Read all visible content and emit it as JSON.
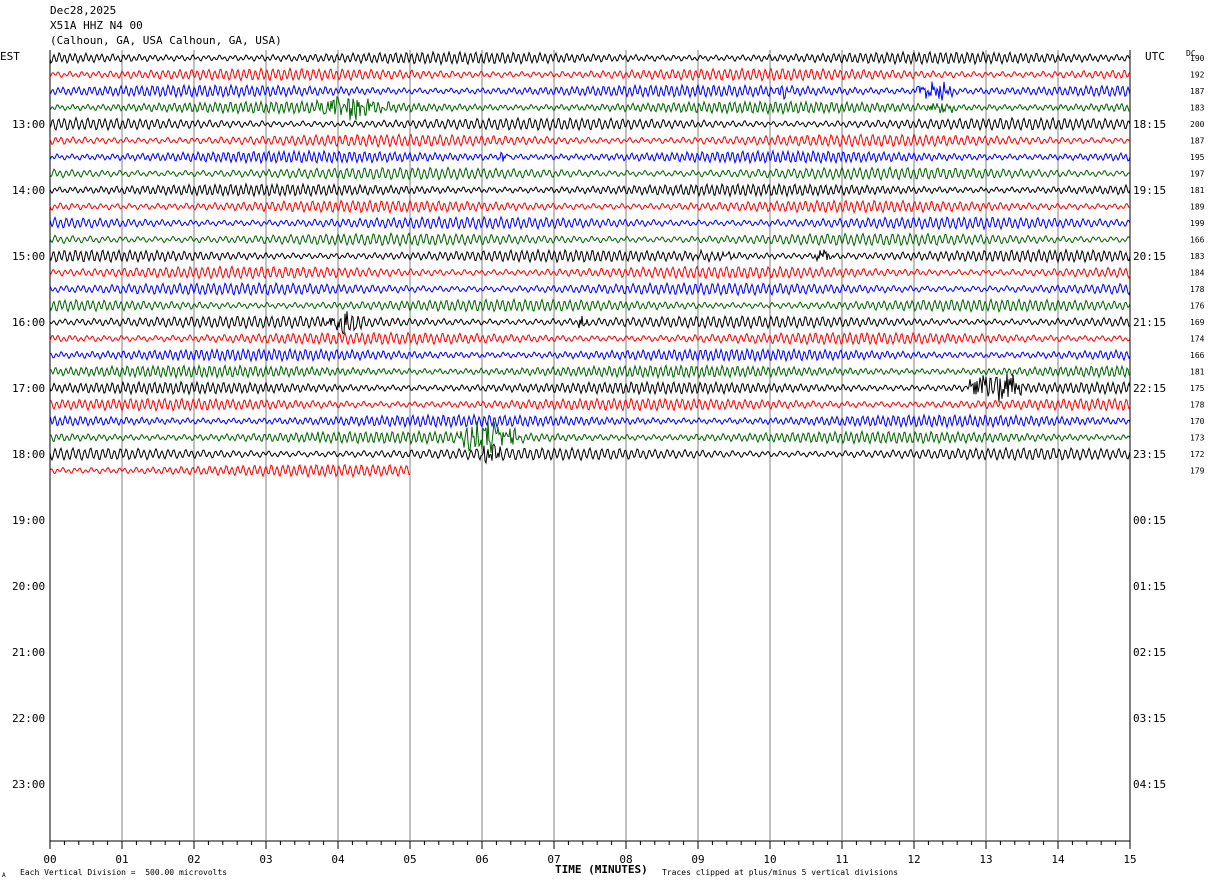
{
  "header": {
    "date": "Dec28,2025",
    "station": "X51A HHZ N4 00",
    "location": "(Calhoun, GA, USA Calhoun, GA, USA)"
  },
  "labels": {
    "left_tz": "EST",
    "right_tz": "UTC",
    "dc": "DC",
    "xlabel": "TIME (MINUTES)",
    "footer_left": "Each Vertical Division =  500.00 microvolts",
    "footer_right": "Traces clipped at plus/minus 5 vertical divisions",
    "corner_mark": "A"
  },
  "colors": {
    "black": "#000000",
    "red": "#ff0000",
    "blue": "#0000ff",
    "green": "#006400",
    "grid": "#808080"
  },
  "chart_data": {
    "type": "line",
    "title": "X51A HHZ N4 00",
    "xlabel": "TIME (MINUTES)",
    "x_ticks": [
      "00",
      "01",
      "02",
      "03",
      "04",
      "05",
      "06",
      "07",
      "08",
      "09",
      "10",
      "11",
      "12",
      "13",
      "14",
      "15"
    ],
    "x_range": [
      0,
      15
    ],
    "left_hour_labels": [
      "13:00",
      "14:00",
      "15:00",
      "16:00",
      "17:00",
      "18:00",
      "19:00",
      "20:00",
      "21:00",
      "22:00",
      "23:00"
    ],
    "right_hour_labels": [
      "18:15",
      "19:15",
      "20:15",
      "21:15",
      "22:15",
      "23:15",
      "00:15",
      "01:15",
      "02:15",
      "03:15",
      "04:15"
    ],
    "trace_colors": [
      "black",
      "red",
      "blue",
      "green"
    ],
    "dc_values": [
      "190",
      "192",
      "187",
      "183",
      "200",
      "187",
      "195",
      "197",
      "181",
      "189",
      "199",
      "166",
      "183",
      "184",
      "178",
      "176",
      "169",
      "174",
      "166",
      "181",
      "175",
      "178",
      "170",
      "173",
      "172",
      "179"
    ],
    "rows_per_hour": 4,
    "minutes_per_row": 15,
    "last_row_end_minute": 5,
    "events": [
      {
        "row": 3,
        "start_min": 3.6,
        "end_min": 5.5,
        "amplitude": 1.6
      },
      {
        "row": 2,
        "start_min": 10.0,
        "end_min": 10.6,
        "amplitude": 0.6
      },
      {
        "row": 2,
        "start_min": 12.0,
        "end_min": 13.0,
        "amplitude": 1.5
      },
      {
        "row": 3,
        "start_min": 12.1,
        "end_min": 13.0,
        "amplitude": 1.0
      },
      {
        "row": 6,
        "start_min": 6.2,
        "end_min": 6.6,
        "amplitude": 0.7
      },
      {
        "row": 12,
        "start_min": 8.7,
        "end_min": 10.3,
        "amplitude": 0.4
      },
      {
        "row": 12,
        "start_min": 10.6,
        "end_min": 11.1,
        "amplitude": 1.2
      },
      {
        "row": 16,
        "start_min": 3.7,
        "end_min": 4.9,
        "amplitude": 1.3
      },
      {
        "row": 16,
        "start_min": 7.3,
        "end_min": 7.7,
        "amplitude": 0.9
      },
      {
        "row": 20,
        "start_min": 12.7,
        "end_min": 14.1,
        "amplitude": 2.6
      },
      {
        "row": 23,
        "start_min": 3.6,
        "end_min": 3.9,
        "amplitude": 0.5
      },
      {
        "row": 23,
        "start_min": 5.6,
        "end_min": 7.2,
        "amplitude": 2.2
      },
      {
        "row": 24,
        "start_min": 5.9,
        "end_min": 6.6,
        "amplitude": 1.6
      }
    ]
  }
}
